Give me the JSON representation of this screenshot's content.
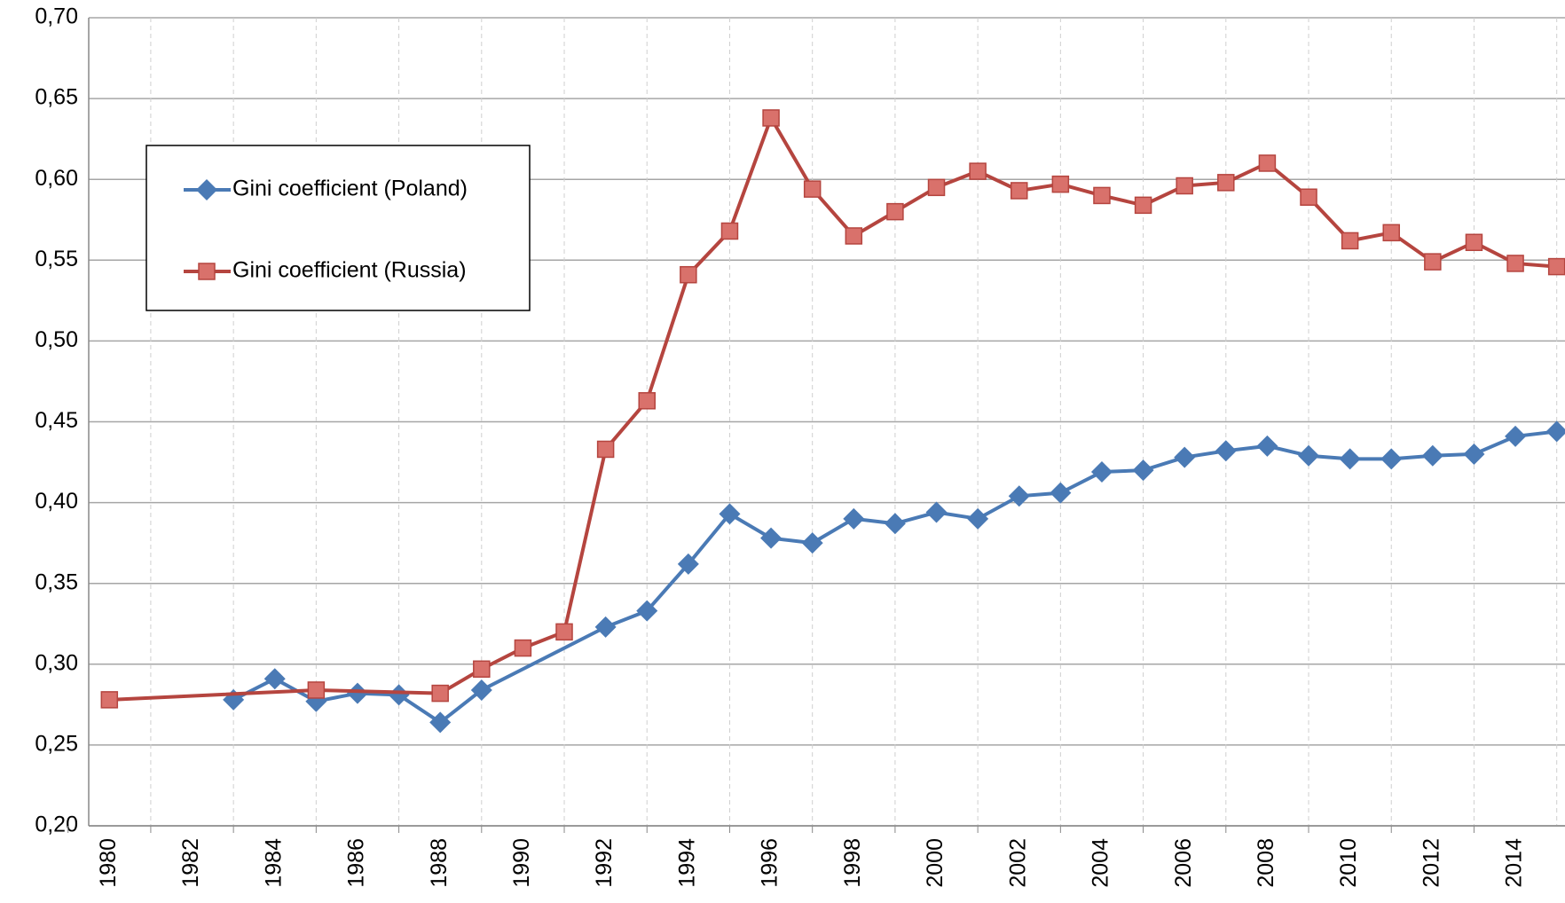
{
  "chart_data": {
    "type": "line",
    "xlim": [
      1979.5,
      2015.2
    ],
    "xticks": [
      1980,
      1982,
      1984,
      1986,
      1988,
      1990,
      1992,
      1994,
      1996,
      1998,
      2000,
      2002,
      2004,
      2006,
      2008,
      2010,
      2012,
      2014
    ],
    "ylim": [
      0.2,
      0.7
    ],
    "yticks": [
      {
        "value": 0.2,
        "label": "0,20"
      },
      {
        "value": 0.25,
        "label": "0,25"
      },
      {
        "value": 0.3,
        "label": "0,30"
      },
      {
        "value": 0.35,
        "label": "0,35"
      },
      {
        "value": 0.4,
        "label": "0,40"
      },
      {
        "value": 0.45,
        "label": "0,45"
      },
      {
        "value": 0.5,
        "label": "0,50"
      },
      {
        "value": 0.55,
        "label": "0,55"
      },
      {
        "value": 0.6,
        "label": "0,60"
      },
      {
        "value": 0.65,
        "label": "0,65"
      },
      {
        "value": 0.7,
        "label": "0,70"
      }
    ],
    "grid": true,
    "legend": "upper-left",
    "series": [
      {
        "name": "Gini coefficient (Poland)",
        "color": "#4a7ab5",
        "marker": "diamond",
        "x": [
          1983,
          1984,
          1985,
          1986,
          1987,
          1988,
          1989,
          1992,
          1993,
          1994,
          1995,
          1996,
          1997,
          1998,
          1999,
          2000,
          2001,
          2002,
          2003,
          2004,
          2005,
          2006,
          2007,
          2008,
          2009,
          2010,
          2011,
          2012,
          2013,
          2014,
          2015
        ],
        "values": [
          0.278,
          0.291,
          0.277,
          0.282,
          0.281,
          0.264,
          0.284,
          0.323,
          0.333,
          0.362,
          0.393,
          0.378,
          0.375,
          0.39,
          0.387,
          0.394,
          0.39,
          0.404,
          0.406,
          0.419,
          0.42,
          0.428,
          0.432,
          0.435,
          0.429,
          0.427,
          0.427,
          0.429,
          0.43,
          0.441,
          0.444
        ]
      },
      {
        "name": "Gini coefficient (Russia)",
        "color": "#b5453f",
        "marker": "square",
        "x": [
          1980,
          1985,
          1988,
          1989,
          1990,
          1991,
          1992,
          1993,
          1994,
          1995,
          1996,
          1997,
          1998,
          1999,
          2000,
          2001,
          2002,
          2003,
          2004,
          2005,
          2006,
          2007,
          2008,
          2009,
          2010,
          2011,
          2012,
          2013,
          2014,
          2015
        ],
        "values": [
          0.278,
          0.284,
          0.282,
          0.297,
          0.31,
          0.32,
          0.433,
          0.463,
          0.541,
          0.568,
          0.638,
          0.594,
          0.565,
          0.58,
          0.595,
          0.605,
          0.593,
          0.597,
          0.59,
          0.584,
          0.596,
          0.598,
          0.61,
          0.589,
          0.562,
          0.567,
          0.549,
          0.561,
          0.548,
          0.546
        ]
      }
    ]
  }
}
